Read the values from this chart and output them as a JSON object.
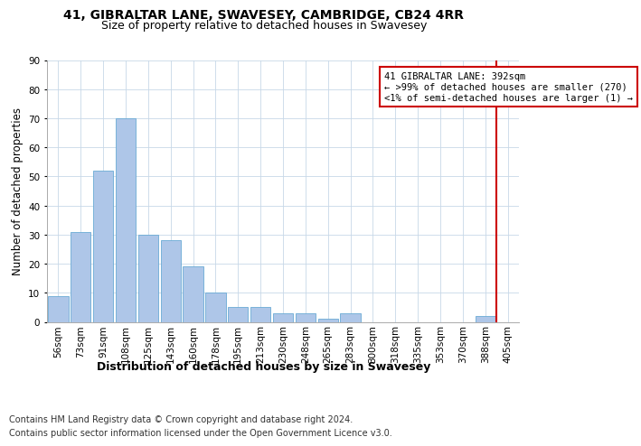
{
  "title": "41, GIBRALTAR LANE, SWAVESEY, CAMBRIDGE, CB24 4RR",
  "subtitle": "Size of property relative to detached houses in Swavesey",
  "xlabel": "Distribution of detached houses by size in Swavesey",
  "ylabel": "Number of detached properties",
  "footer_line1": "Contains HM Land Registry data © Crown copyright and database right 2024.",
  "footer_line2": "Contains public sector information licensed under the Open Government Licence v3.0.",
  "categories": [
    "56sqm",
    "73sqm",
    "91sqm",
    "108sqm",
    "125sqm",
    "143sqm",
    "160sqm",
    "178sqm",
    "195sqm",
    "213sqm",
    "230sqm",
    "248sqm",
    "265sqm",
    "283sqm",
    "300sqm",
    "318sqm",
    "335sqm",
    "353sqm",
    "370sqm",
    "388sqm",
    "405sqm"
  ],
  "values": [
    9,
    31,
    52,
    70,
    30,
    28,
    19,
    10,
    5,
    5,
    3,
    3,
    1,
    3,
    0,
    0,
    0,
    0,
    0,
    2,
    0
  ],
  "bar_color": "#aec6e8",
  "bar_edge_color": "#6aaad4",
  "annotation_text": "41 GIBRALTAR LANE: 392sqm\n← >99% of detached houses are smaller (270)\n<1% of semi-detached houses are larger (1) →",
  "annotation_box_color": "#cc0000",
  "red_line_x": 19.5,
  "ylim": [
    0,
    90
  ],
  "yticks": [
    0,
    10,
    20,
    30,
    40,
    50,
    60,
    70,
    80,
    90
  ],
  "background_color": "#ffffff",
  "grid_color": "#c8d8e8",
  "title_fontsize": 10,
  "subtitle_fontsize": 9,
  "ylabel_fontsize": 8.5,
  "xlabel_fontsize": 9,
  "tick_fontsize": 7.5,
  "footer_fontsize": 7,
  "ann_fontsize": 7.5
}
